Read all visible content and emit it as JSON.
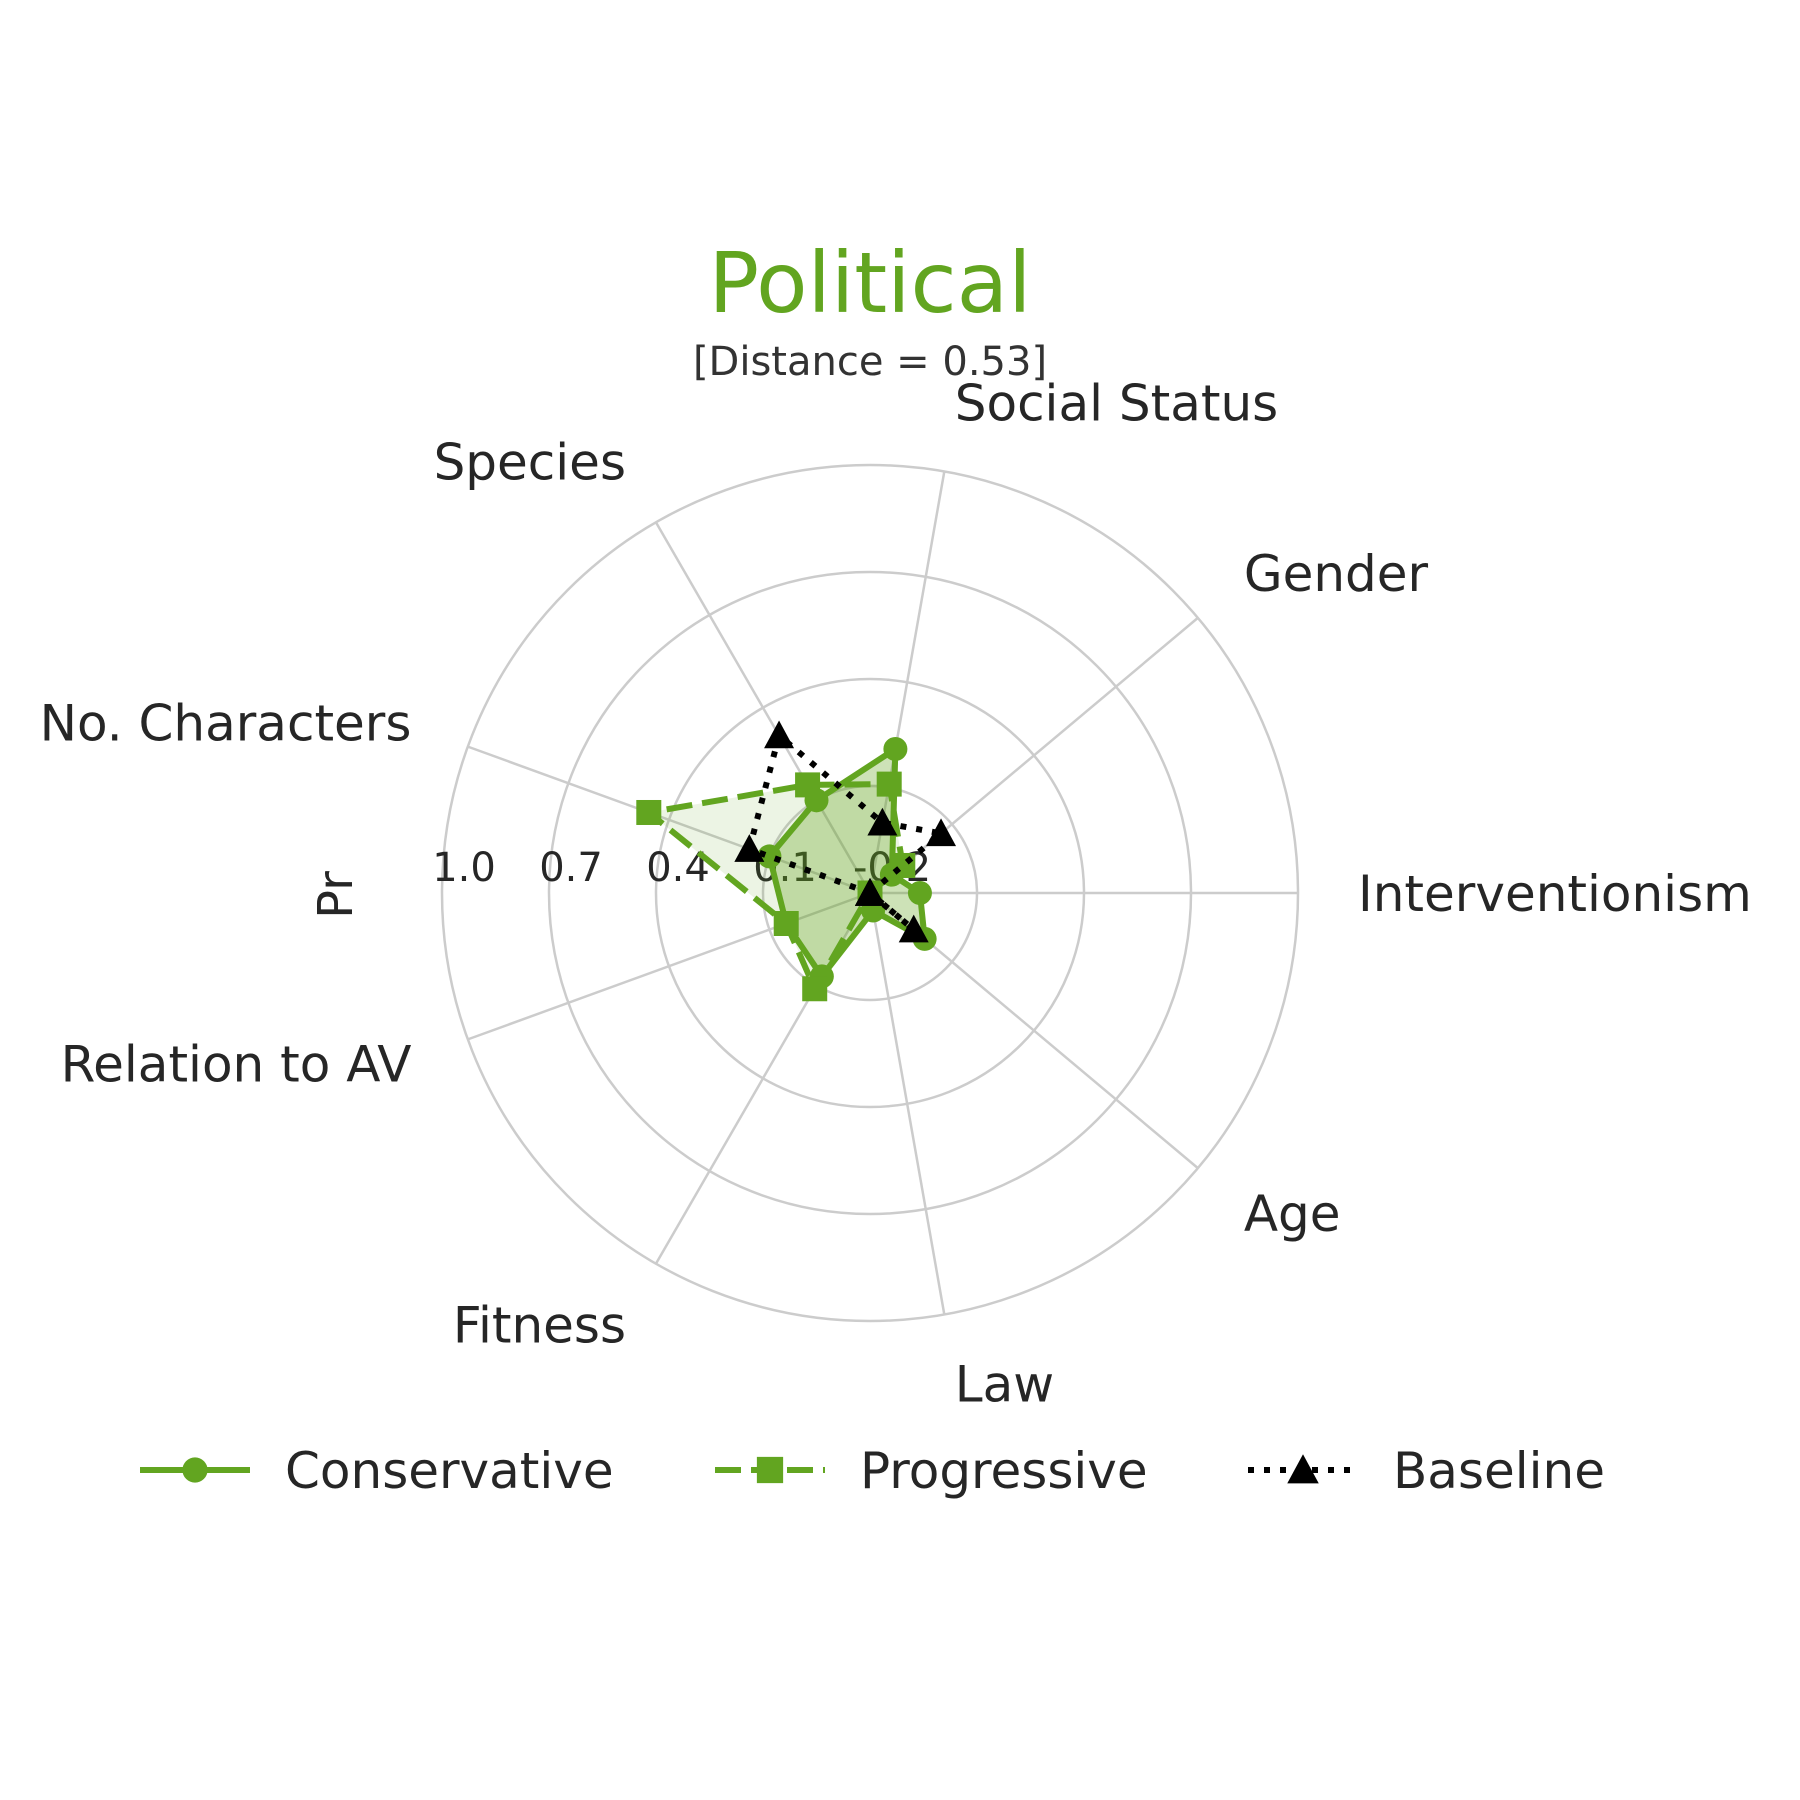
{
  "chart_data": {
    "type": "radar",
    "title": "Political",
    "subtitle": "[Distance = 0.53]",
    "ylabel": "Pr",
    "axes": [
      "Interventionism",
      "Social Status",
      "Species",
      "No. Characters",
      "Relation to AV",
      "Fitness",
      "Law",
      "Age",
      "Gender"
    ],
    "axis_angles_deg": [
      0,
      80,
      120,
      160,
      200,
      240,
      280,
      320,
      40
    ],
    "radial_ticks": [
      -0.2,
      0.1,
      0.4,
      0.7,
      1.0
    ],
    "radial_tick_labels": [
      "-0.2",
      "0.1",
      "0.4",
      "0.7",
      "1.0"
    ],
    "rlim": [
      -0.2,
      1.0
    ],
    "grid": true,
    "legend_position": "bottom",
    "series": [
      {
        "name": "Conservative",
        "color": "#62a520",
        "linestyle": "solid",
        "marker": "circle",
        "fill": true,
        "values": {
          "Interventionism": -0.06,
          "Social Status": 0.21,
          "Species": 0.1,
          "No. Characters": 0.1,
          "Relation to AV": 0.05,
          "Fitness": 0.07,
          "Law": -0.15,
          "Age": 0.0,
          "Gender": -0.12
        }
      },
      {
        "name": "Progressive",
        "color": "#62a520",
        "linestyle": "dashed",
        "marker": "square",
        "fill": true,
        "values": {
          "Interventionism": -0.2,
          "Social Status": 0.11,
          "Species": 0.15,
          "No. Characters": 0.46,
          "Relation to AV": 0.05,
          "Fitness": 0.11,
          "Law": -0.2,
          "Age": -0.2,
          "Gender": -0.08
        }
      },
      {
        "name": "Baseline",
        "color": "#000000",
        "linestyle": "dotted",
        "marker": "triangle",
        "fill": false,
        "values": {
          "Interventionism": -0.2,
          "Social Status": 0.0,
          "Species": 0.31,
          "No. Characters": 0.16,
          "Relation to AV": -0.2,
          "Fitness": -0.2,
          "Law": -0.2,
          "Age": -0.04,
          "Gender": 0.06
        }
      }
    ]
  }
}
